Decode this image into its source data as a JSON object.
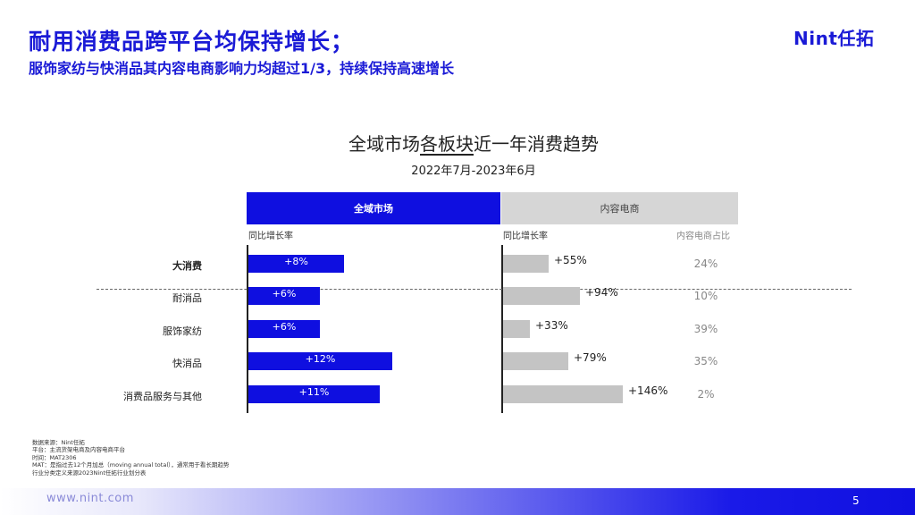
{
  "header": {
    "title": "耐用消费品跨平台均保持增长；",
    "subtitle": "服饰家纺与快消品其内容电商影响力均超过1/3，持续保持高速增长",
    "logo": "Nint任拓"
  },
  "chart_data": {
    "type": "bar",
    "title_parts": [
      "全域市场",
      "各板块",
      "近一年消费趋势"
    ],
    "subtitle": "2022年7月-2023年6月",
    "panels": {
      "left_header": "全域市场",
      "right_header": "内容电商",
      "left_label": "同比增长率",
      "right_label": "同比增长率",
      "share_label": "内容电商占比"
    },
    "categories": [
      "大消费",
      "耐消品",
      "服饰家纺",
      "快消品",
      "消费品服务与其他"
    ],
    "series": [
      {
        "name": "全域市场 同比增长率",
        "values": [
          8,
          6,
          6,
          12,
          11
        ],
        "labels": [
          "+8%",
          "+6%",
          "+6%",
          "+12%",
          "+11%"
        ]
      },
      {
        "name": "内容电商 同比增长率",
        "values": [
          55,
          94,
          33,
          79,
          146
        ],
        "labels": [
          "+55%",
          "+94%",
          "+33%",
          "+79%",
          "+146%"
        ]
      },
      {
        "name": "内容电商占比",
        "values": [
          24,
          10,
          39,
          35,
          2
        ],
        "labels": [
          "24%",
          "10%",
          "39%",
          "35%",
          "2%"
        ]
      }
    ]
  },
  "notes": [
    "数据来源：Nint任拓",
    "平台：主流货架电商及内容电商平台",
    "时间：MAT2306",
    "MAT：是指过去12个月加总（moving annual total），通常用于看长期趋势",
    "行业分类定义来源2023Nint任拓行业划分表"
  ],
  "footer": {
    "url": "www.nint.com",
    "page": "5"
  }
}
